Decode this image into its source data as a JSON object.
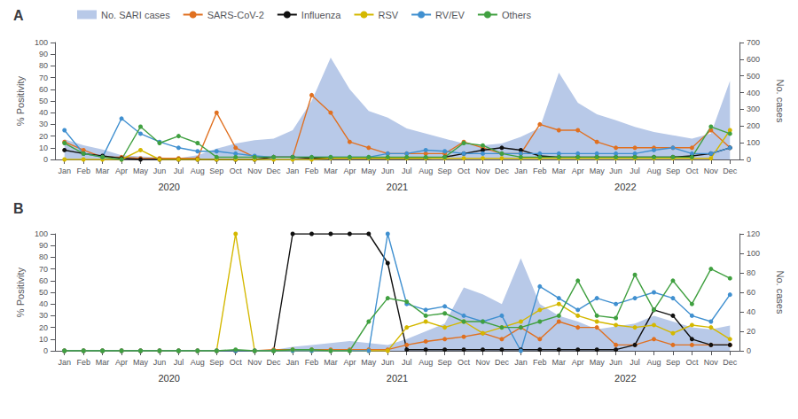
{
  "chart_data": [
    {
      "type": "line",
      "title": "A",
      "categories": [
        "Jan",
        "Feb",
        "Mar",
        "Apr",
        "May",
        "Jun",
        "Jul",
        "Aug",
        "Sep",
        "Oct",
        "Nov",
        "Dec",
        "Jan",
        "Feb",
        "Mar",
        "Apr",
        "May",
        "Jun",
        "Jul",
        "Aug",
        "Sep",
        "Oct",
        "Nov",
        "Dec",
        "Jan",
        "Feb",
        "Mar",
        "Apr",
        "May",
        "Jun",
        "Jul",
        "Aug",
        "Sep",
        "Oct",
        "Nov",
        "Dec"
      ],
      "annotations": [
        "2020",
        "2021",
        "2022"
      ],
      "ylabel": "% Positivity",
      "y2label": "No. cases",
      "ylim": [
        0,
        100
      ],
      "yticks": [
        0,
        10,
        20,
        30,
        40,
        50,
        60,
        70,
        80,
        90,
        100
      ],
      "y2lim": [
        0,
        700
      ],
      "y2ticks": [
        0,
        100,
        200,
        300,
        400,
        500,
        600,
        700
      ],
      "grid": false,
      "legend": "upper left",
      "marker": "circle",
      "series": [
        {
          "name": "No. SARI cases",
          "type": "area",
          "axis": "y2",
          "color": "#b8c9e8",
          "values": [
            120,
            85,
            60,
            25,
            18,
            12,
            8,
            25,
            65,
            95,
            115,
            125,
            175,
            350,
            610,
            420,
            290,
            250,
            185,
            155,
            125,
            95,
            85,
            95,
            135,
            190,
            520,
            340,
            270,
            235,
            195,
            165,
            145,
            125,
            155,
            470
          ]
        },
        {
          "name": "SARS-CoV-2",
          "color": "#e07020",
          "values": [
            15,
            8,
            2,
            2,
            1,
            1,
            1,
            1,
            40,
            10,
            2,
            2,
            2,
            55,
            40,
            15,
            10,
            5,
            5,
            5,
            5,
            15,
            10,
            5,
            5,
            30,
            25,
            25,
            15,
            10,
            10,
            10,
            10,
            10,
            25,
            10
          ]
        },
        {
          "name": "Influenza",
          "color": "#101010",
          "values": [
            8,
            5,
            3,
            1,
            0,
            0,
            0,
            0,
            0,
            0,
            0,
            2,
            2,
            1,
            1,
            1,
            1,
            1,
            1,
            1,
            2,
            5,
            8,
            10,
            8,
            3,
            2,
            2,
            2,
            2,
            2,
            2,
            2,
            3,
            5,
            10
          ]
        },
        {
          "name": "RSV",
          "color": "#d4b800",
          "values": [
            0,
            0,
            0,
            0,
            8,
            0,
            0,
            0,
            0,
            0,
            0,
            0,
            0,
            0,
            1,
            1,
            1,
            1,
            1,
            1,
            1,
            1,
            1,
            1,
            1,
            1,
            1,
            1,
            1,
            1,
            1,
            1,
            1,
            1,
            1,
            25
          ]
        },
        {
          "name": "RV/EV",
          "color": "#4090d0",
          "values": [
            25,
            5,
            2,
            35,
            22,
            15,
            10,
            7,
            7,
            5,
            3,
            2,
            2,
            2,
            2,
            2,
            2,
            5,
            5,
            8,
            7,
            5,
            5,
            5,
            5,
            5,
            5,
            5,
            5,
            5,
            5,
            8,
            10,
            5,
            5,
            10
          ]
        },
        {
          "name": "Others",
          "color": "#40a040",
          "values": [
            14,
            5,
            2,
            0,
            28,
            14,
            20,
            14,
            2,
            2,
            2,
            2,
            2,
            2,
            2,
            2,
            2,
            2,
            2,
            2,
            2,
            14,
            12,
            5,
            2,
            2,
            2,
            2,
            2,
            2,
            2,
            2,
            2,
            2,
            28,
            22
          ]
        }
      ]
    },
    {
      "type": "line",
      "title": "B",
      "categories": [
        "Jan",
        "Feb",
        "Mar",
        "Apr",
        "May",
        "Jun",
        "Jul",
        "Aug",
        "Sep",
        "Oct",
        "Nov",
        "Dec",
        "Jan",
        "Feb",
        "Mar",
        "Apr",
        "May",
        "Jun",
        "Jul",
        "Aug",
        "Sep",
        "Oct",
        "Nov",
        "Dec",
        "Jan",
        "Feb",
        "Mar",
        "Apr",
        "May",
        "Jun",
        "Jul",
        "Aug",
        "Sep",
        "Oct",
        "Nov",
        "Dec"
      ],
      "annotations": [
        "2020",
        "2021",
        "2022"
      ],
      "ylabel": "% Positivity",
      "y2label": "No. cases",
      "ylim": [
        0,
        100
      ],
      "yticks": [
        0,
        10,
        20,
        30,
        40,
        50,
        60,
        70,
        80,
        90,
        100
      ],
      "y2lim": [
        0,
        120
      ],
      "y2ticks": [
        0,
        20,
        40,
        60,
        80,
        100,
        120
      ],
      "grid": false,
      "marker": "circle",
      "series": [
        {
          "type": "area",
          "axis": "y2",
          "color": "#b8c9e8",
          "values": [
            1,
            1,
            1,
            1,
            1,
            1,
            1,
            1,
            1,
            1,
            1,
            1,
            4,
            6,
            8,
            10,
            8,
            6,
            12,
            20,
            28,
            65,
            58,
            48,
            95,
            48,
            36,
            30,
            22,
            25,
            28,
            36,
            30,
            24,
            22,
            26
          ]
        },
        {
          "color": "#e07020",
          "values": [
            0,
            0,
            0,
            0,
            0,
            0,
            0,
            0,
            0,
            0,
            0,
            1,
            1,
            1,
            1,
            1,
            1,
            1,
            5,
            8,
            10,
            12,
            15,
            10,
            20,
            10,
            25,
            20,
            20,
            5,
            5,
            10,
            5,
            5,
            5,
            5
          ]
        },
        {
          "color": "#101010",
          "values": [
            0,
            0,
            0,
            0,
            0,
            0,
            0,
            0,
            0,
            0,
            0,
            0,
            100,
            100,
            100,
            100,
            100,
            75,
            1,
            1,
            1,
            1,
            1,
            1,
            1,
            1,
            1,
            1,
            1,
            1,
            5,
            35,
            30,
            10,
            5,
            5
          ]
        },
        {
          "color": "#d4b800",
          "values": [
            0,
            0,
            0,
            0,
            0,
            0,
            0,
            0,
            0,
            100,
            0,
            0,
            0,
            0,
            0,
            0,
            0,
            0,
            20,
            25,
            20,
            25,
            15,
            20,
            25,
            35,
            40,
            30,
            25,
            22,
            20,
            22,
            15,
            22,
            20,
            10
          ]
        },
        {
          "color": "#4090d0",
          "values": [
            0,
            0,
            0,
            0,
            0,
            0,
            0,
            0,
            0,
            0,
            0,
            0,
            0,
            0,
            0,
            0,
            0,
            100,
            40,
            35,
            38,
            30,
            25,
            30,
            0,
            55,
            45,
            35,
            45,
            40,
            45,
            50,
            45,
            30,
            25,
            48
          ]
        },
        {
          "color": "#40a040",
          "values": [
            0,
            0,
            0,
            0,
            0,
            0,
            0,
            0,
            0,
            1,
            0,
            0,
            1,
            1,
            0,
            0,
            25,
            45,
            42,
            30,
            32,
            25,
            25,
            20,
            20,
            25,
            30,
            60,
            30,
            28,
            65,
            35,
            60,
            40,
            70,
            62
          ]
        }
      ]
    }
  ]
}
